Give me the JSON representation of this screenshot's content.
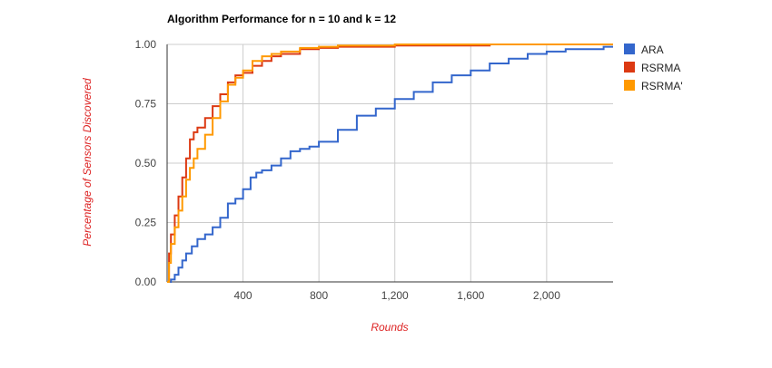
{
  "chart_data": {
    "type": "line",
    "title": "Algorithm Performance for n = 10 and k = 12",
    "xlabel": "Rounds",
    "ylabel": "Percentage of Sensors Discovered",
    "xlim": [
      0,
      2350
    ],
    "ylim": [
      0,
      1
    ],
    "x_ticks": [
      400,
      800,
      1200,
      1600,
      2000
    ],
    "x_tick_labels": [
      "400",
      "800",
      "1,200",
      "1,600",
      "2,000"
    ],
    "y_ticks": [
      0,
      0.25,
      0.5,
      0.75,
      1
    ],
    "y_tick_labels": [
      "0.00",
      "0.25",
      "0.50",
      "0.75",
      "1.00"
    ],
    "grid": true,
    "legend_position": "right",
    "series": [
      {
        "name": "ARA",
        "color": "#3366cc",
        "x": [
          0,
          20,
          40,
          60,
          80,
          100,
          130,
          160,
          200,
          240,
          280,
          320,
          360,
          400,
          440,
          470,
          500,
          550,
          600,
          650,
          700,
          750,
          800,
          900,
          1000,
          1100,
          1200,
          1300,
          1400,
          1500,
          1600,
          1700,
          1800,
          1900,
          2000,
          2100,
          2200,
          2300,
          2350
        ],
        "y": [
          0.0,
          0.01,
          0.03,
          0.06,
          0.09,
          0.12,
          0.15,
          0.18,
          0.2,
          0.23,
          0.27,
          0.33,
          0.35,
          0.39,
          0.44,
          0.46,
          0.47,
          0.49,
          0.52,
          0.55,
          0.56,
          0.57,
          0.59,
          0.64,
          0.7,
          0.73,
          0.77,
          0.8,
          0.84,
          0.87,
          0.89,
          0.92,
          0.94,
          0.96,
          0.97,
          0.98,
          0.98,
          0.99,
          0.99
        ]
      },
      {
        "name": "RSRMA",
        "color": "#dc3912",
        "x": [
          0,
          10,
          20,
          40,
          60,
          80,
          100,
          120,
          140,
          160,
          200,
          240,
          280,
          320,
          360,
          400,
          450,
          500,
          550,
          600,
          700,
          800,
          900,
          1000,
          1200,
          1400,
          1700,
          2000,
          2350
        ],
        "y": [
          0.0,
          0.12,
          0.2,
          0.28,
          0.36,
          0.44,
          0.52,
          0.6,
          0.63,
          0.65,
          0.69,
          0.74,
          0.79,
          0.84,
          0.87,
          0.88,
          0.91,
          0.93,
          0.95,
          0.96,
          0.98,
          0.985,
          0.99,
          0.99,
          0.995,
          0.995,
          1.0,
          1.0,
          1.0
        ]
      },
      {
        "name": "RSRMA'",
        "color": "#ff9900",
        "x": [
          0,
          10,
          20,
          40,
          60,
          80,
          100,
          120,
          140,
          160,
          200,
          240,
          280,
          320,
          360,
          400,
          450,
          500,
          550,
          600,
          700,
          800,
          900,
          1000,
          1200,
          1400,
          1700,
          2000,
          2350
        ],
        "y": [
          0.0,
          0.08,
          0.16,
          0.23,
          0.3,
          0.36,
          0.43,
          0.48,
          0.52,
          0.56,
          0.62,
          0.69,
          0.76,
          0.83,
          0.86,
          0.89,
          0.93,
          0.95,
          0.96,
          0.97,
          0.985,
          0.99,
          0.995,
          0.995,
          1.0,
          1.0,
          1.0,
          1.0,
          1.0
        ]
      }
    ]
  }
}
